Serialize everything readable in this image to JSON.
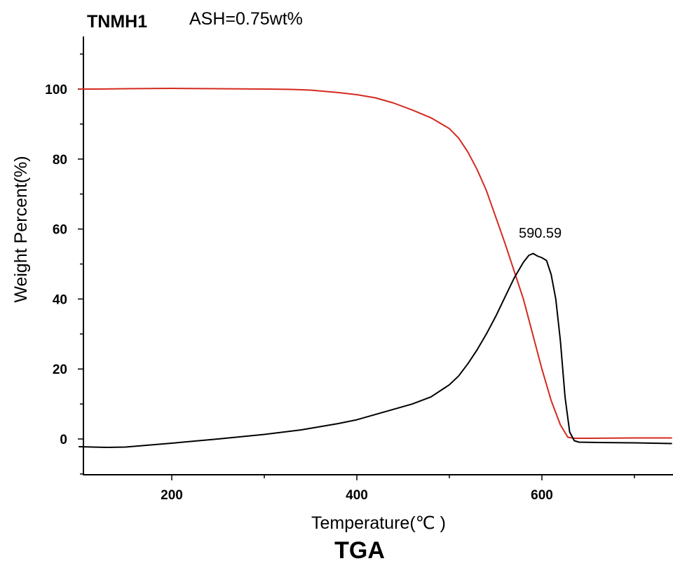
{
  "header": {
    "sample_name": "TNMH1",
    "ash_text": "ASH=0.75wt%"
  },
  "chart_data": {
    "type": "line",
    "title": "TGA",
    "xlabel": "Temperature(℃ )",
    "ylabel": "Weight Percent(%)",
    "xlim": [
      100,
      740
    ],
    "ylim": [
      -10,
      115
    ],
    "x_ticks": [
      200,
      400,
      600
    ],
    "y_ticks": [
      0,
      20,
      40,
      60,
      80,
      100
    ],
    "grid": false,
    "legend": "none",
    "annotations": [
      {
        "text": "590.59",
        "x": 590.59,
        "y": 57
      }
    ],
    "series": [
      {
        "color": "#d42a1f",
        "points": [
          [
            100,
            100
          ],
          [
            120,
            100
          ],
          [
            150,
            100.1
          ],
          [
            200,
            100.2
          ],
          [
            250,
            100.1
          ],
          [
            300,
            100
          ],
          [
            330,
            99.9
          ],
          [
            350,
            99.7
          ],
          [
            380,
            99
          ],
          [
            400,
            98.4
          ],
          [
            420,
            97.5
          ],
          [
            440,
            96
          ],
          [
            460,
            94
          ],
          [
            480,
            91.8
          ],
          [
            500,
            88.7
          ],
          [
            510,
            86
          ],
          [
            520,
            82
          ],
          [
            530,
            77
          ],
          [
            540,
            71
          ],
          [
            550,
            63.5
          ],
          [
            560,
            56
          ],
          [
            570,
            48
          ],
          [
            580,
            40
          ],
          [
            590,
            30
          ],
          [
            600,
            20
          ],
          [
            610,
            11
          ],
          [
            620,
            4
          ],
          [
            628,
            0.5
          ],
          [
            635,
            0.2
          ],
          [
            650,
            0.2
          ],
          [
            700,
            0.3
          ],
          [
            740,
            0.3
          ]
        ]
      },
      {
        "color": "#000000",
        "points": [
          [
            100,
            -2.2
          ],
          [
            130,
            -2.4
          ],
          [
            150,
            -2.3
          ],
          [
            200,
            -1.2
          ],
          [
            250,
            0
          ],
          [
            300,
            1.3
          ],
          [
            340,
            2.6
          ],
          [
            380,
            4.4
          ],
          [
            400,
            5.5
          ],
          [
            420,
            7
          ],
          [
            440,
            8.5
          ],
          [
            460,
            10
          ],
          [
            480,
            12
          ],
          [
            500,
            15.5
          ],
          [
            510,
            18
          ],
          [
            520,
            21.5
          ],
          [
            530,
            25.5
          ],
          [
            540,
            30
          ],
          [
            550,
            35
          ],
          [
            560,
            40.5
          ],
          [
            570,
            46
          ],
          [
            580,
            50.5
          ],
          [
            586,
            52.5
          ],
          [
            590.59,
            53
          ],
          [
            595,
            52.3
          ],
          [
            600,
            51.8
          ],
          [
            605,
            51
          ],
          [
            610,
            47
          ],
          [
            615,
            40
          ],
          [
            620,
            28
          ],
          [
            625,
            12
          ],
          [
            630,
            2
          ],
          [
            635,
            -0.5
          ],
          [
            640,
            -0.9
          ],
          [
            660,
            -1
          ],
          [
            700,
            -1.1
          ],
          [
            740,
            -1.3
          ]
        ]
      }
    ]
  }
}
